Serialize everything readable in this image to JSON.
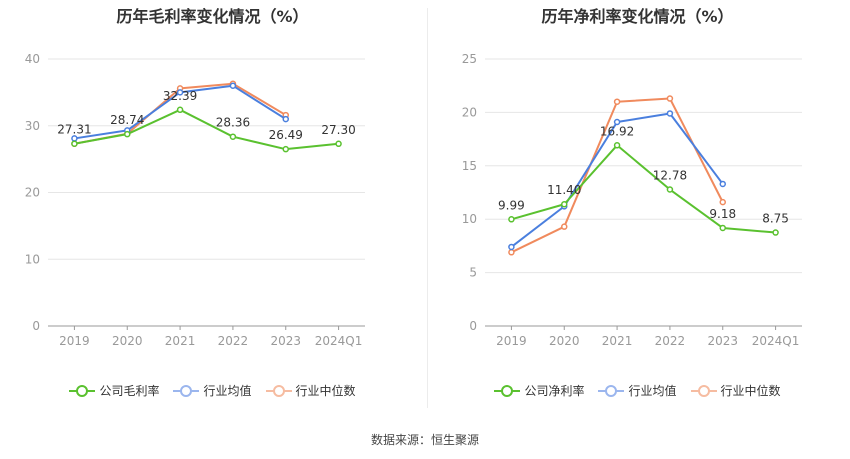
{
  "colors": {
    "company": "#5ac12f",
    "industry_avg": "#4a7fde",
    "industry_median": "#f08a5d",
    "grid": "#e6e6e6",
    "axis_text": "#999999"
  },
  "legend_labels": {
    "gross_company": "公司毛利率",
    "net_company": "公司净利率",
    "industry_avg": "行业均值",
    "industry_median": "行业中位数"
  },
  "source_text": "数据来源：恒生聚源",
  "chart_data": [
    {
      "type": "line",
      "title": "历年毛利率变化情况（%）",
      "categories": [
        "2019",
        "2020",
        "2021",
        "2022",
        "2023",
        "2024Q1"
      ],
      "ylim": [
        0,
        40
      ],
      "yticks": [
        0,
        10,
        20,
        30,
        40
      ],
      "grid": true,
      "legend_position": "bottom",
      "series": [
        {
          "name": "公司毛利率",
          "values": [
            27.31,
            28.74,
            32.39,
            28.36,
            26.49,
            27.3
          ],
          "labels": [
            "27.31",
            "28.74",
            "32.39",
            "28.36",
            "26.49",
            "27.30"
          ]
        },
        {
          "name": "行业均值",
          "values": [
            28.1,
            29.3,
            35.0,
            36.0,
            31.0,
            null
          ]
        },
        {
          "name": "行业中位数",
          "values": [
            27.3,
            28.8,
            35.6,
            36.3,
            31.6,
            null
          ]
        }
      ]
    },
    {
      "type": "line",
      "title": "历年净利率变化情况（%）",
      "categories": [
        "2019",
        "2020",
        "2021",
        "2022",
        "2023",
        "2024Q1"
      ],
      "ylim": [
        0,
        25
      ],
      "yticks": [
        0,
        5,
        10,
        15,
        20,
        25
      ],
      "grid": true,
      "legend_position": "bottom",
      "series": [
        {
          "name": "公司净利率",
          "values": [
            9.99,
            11.4,
            16.92,
            12.78,
            9.18,
            8.75
          ],
          "labels": [
            "9.99",
            "11.40",
            "16.92",
            "12.78",
            "9.18",
            "8.75"
          ]
        },
        {
          "name": "行业均值",
          "values": [
            7.4,
            11.2,
            19.1,
            19.9,
            13.3,
            null
          ]
        },
        {
          "name": "行业中位数",
          "values": [
            6.9,
            9.3,
            21.0,
            21.3,
            11.6,
            null
          ]
        }
      ]
    }
  ]
}
